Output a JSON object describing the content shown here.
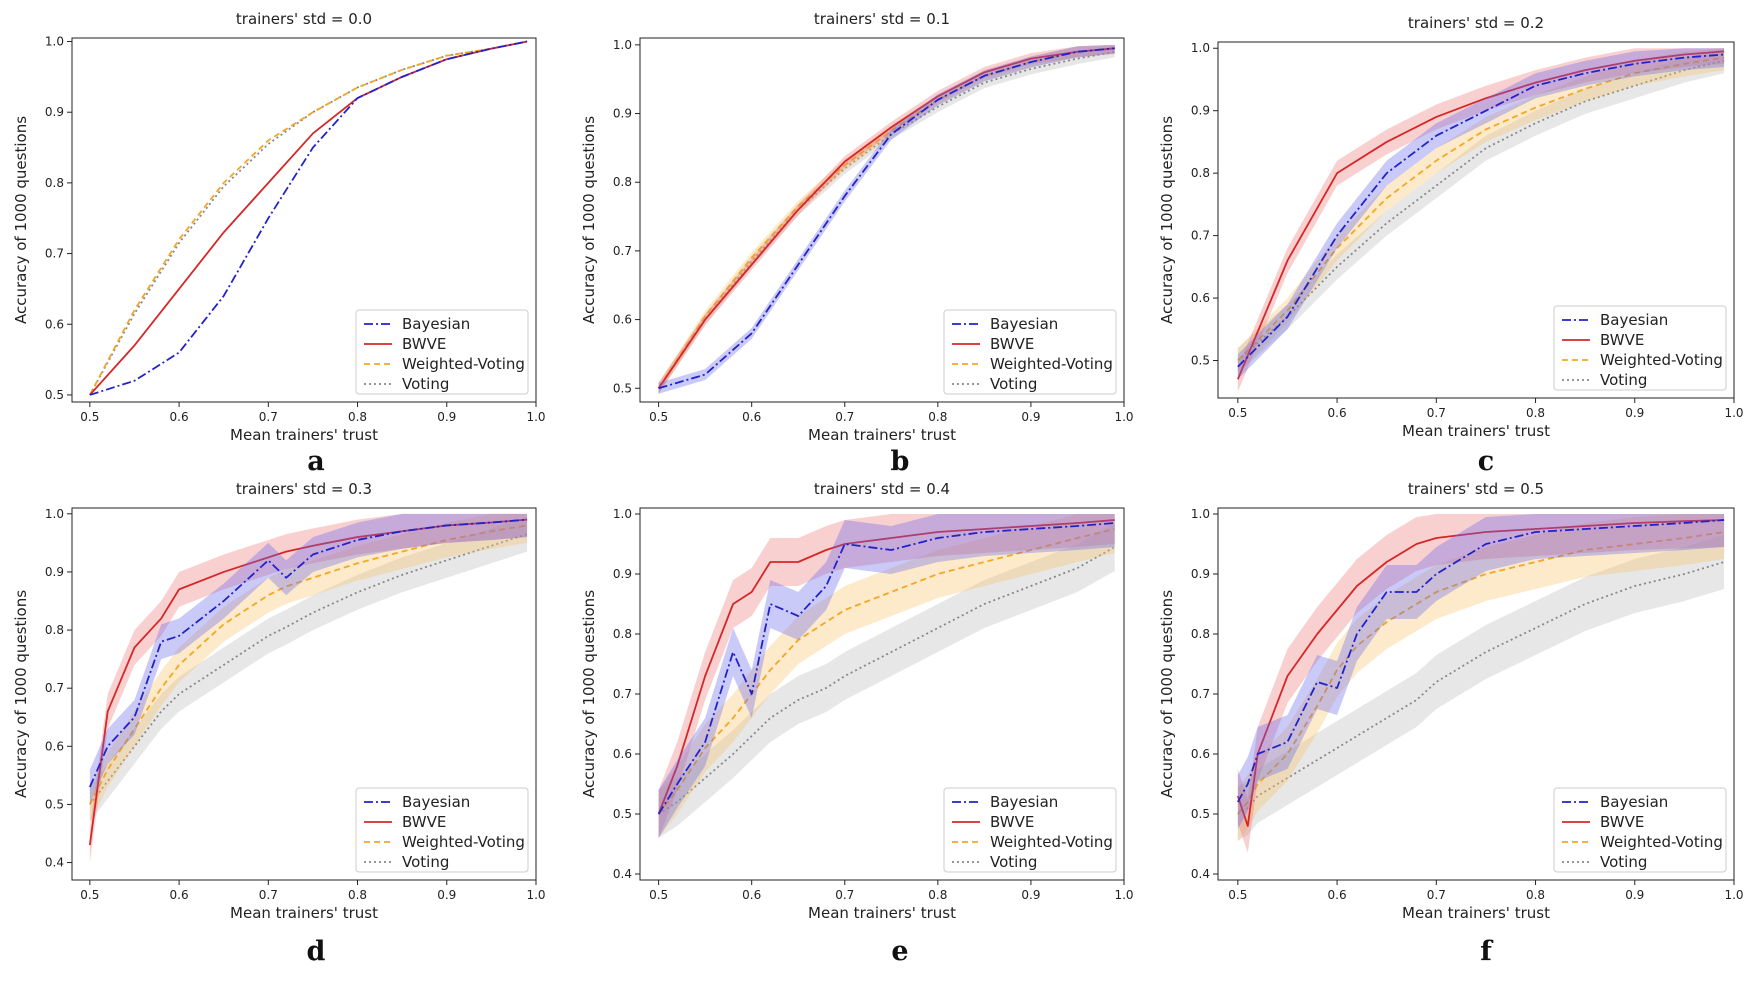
{
  "colors": {
    "Bayesian": "#2222cc",
    "BWVE": "#d62728",
    "Weighted-Voting": "#f5a623",
    "Voting": "#888888",
    "band_Bayesian": "#6666ee",
    "band_BWVE": "#ee7777",
    "band_Weighted-Voting": "#f7c46a",
    "band_Voting": "#bbbbbb"
  },
  "legend_labels": [
    "Bayesian",
    "BWVE",
    "Weighted-Voting",
    "Voting"
  ],
  "chart_data": [
    {
      "type": "line",
      "panel": "a",
      "title": "trainers' std = 0.0",
      "xlabel": "Mean trainers' trust",
      "ylabel": "Accuracy of 1000 questions",
      "xlim": [
        0.48,
        1.0
      ],
      "ylim": [
        0.49,
        1.005
      ],
      "xticks": [
        "0.5",
        "0.6",
        "0.7",
        "0.8",
        "0.9",
        "1.0"
      ],
      "yticks": [
        "0.5",
        "0.6",
        "0.7",
        "0.8",
        "0.9",
        "1.0"
      ],
      "legend": "lower-right",
      "band": 0.0,
      "x": [
        0.5,
        0.55,
        0.6,
        0.65,
        0.7,
        0.75,
        0.8,
        0.85,
        0.9,
        0.95,
        0.99
      ],
      "series": [
        {
          "name": "Bayesian",
          "values": [
            0.5,
            0.52,
            0.56,
            0.64,
            0.75,
            0.85,
            0.92,
            0.95,
            0.975,
            0.99,
            1.0
          ]
        },
        {
          "name": "BWVE",
          "values": [
            0.5,
            0.57,
            0.65,
            0.73,
            0.8,
            0.87,
            0.92,
            0.95,
            0.975,
            0.99,
            1.0
          ]
        },
        {
          "name": "Weighted-Voting",
          "values": [
            0.5,
            0.62,
            0.72,
            0.8,
            0.86,
            0.9,
            0.935,
            0.96,
            0.98,
            0.99,
            1.0
          ]
        },
        {
          "name": "Voting",
          "values": [
            0.5,
            0.615,
            0.715,
            0.795,
            0.855,
            0.9,
            0.935,
            0.96,
            0.98,
            0.99,
            1.0
          ]
        }
      ]
    },
    {
      "type": "line",
      "panel": "b",
      "title": "trainers' std = 0.1",
      "xlabel": "Mean trainers' trust",
      "ylabel": "Accuracy of 1000 questions",
      "xlim": [
        0.48,
        1.0
      ],
      "ylim": [
        0.48,
        1.01
      ],
      "xticks": [
        "0.5",
        "0.6",
        "0.7",
        "0.8",
        "0.9",
        "1.0"
      ],
      "yticks": [
        "0.5",
        "0.6",
        "0.7",
        "0.8",
        "0.9",
        "1.0"
      ],
      "legend": "lower-right",
      "band": 0.008,
      "x": [
        0.5,
        0.55,
        0.6,
        0.65,
        0.7,
        0.75,
        0.8,
        0.85,
        0.9,
        0.95,
        0.99
      ],
      "series": [
        {
          "name": "Bayesian",
          "values": [
            0.5,
            0.52,
            0.58,
            0.68,
            0.78,
            0.87,
            0.92,
            0.955,
            0.975,
            0.99,
            0.995
          ]
        },
        {
          "name": "BWVE",
          "values": [
            0.5,
            0.6,
            0.68,
            0.76,
            0.83,
            0.88,
            0.925,
            0.96,
            0.98,
            0.99,
            0.995
          ]
        },
        {
          "name": "Weighted-Voting",
          "values": [
            0.5,
            0.605,
            0.69,
            0.765,
            0.825,
            0.875,
            0.92,
            0.955,
            0.975,
            0.99,
            0.995
          ]
        },
        {
          "name": "Voting",
          "values": [
            0.5,
            0.6,
            0.685,
            0.76,
            0.82,
            0.87,
            0.91,
            0.945,
            0.965,
            0.98,
            0.99
          ]
        }
      ]
    },
    {
      "type": "line",
      "panel": "c",
      "title": "trainers' std = 0.2",
      "xlabel": "Mean trainers' trust",
      "ylabel": "Accuracy of 1000 questions",
      "xlim": [
        0.48,
        1.0
      ],
      "ylim": [
        0.44,
        1.01
      ],
      "xticks": [
        "0.5",
        "0.6",
        "0.7",
        "0.8",
        "0.9",
        "1.0"
      ],
      "yticks": [
        "0.5",
        "0.6",
        "0.7",
        "0.8",
        "0.9",
        "1.0"
      ],
      "legend": "lower-right",
      "band": 0.02,
      "x": [
        0.5,
        0.55,
        0.6,
        0.65,
        0.7,
        0.75,
        0.8,
        0.85,
        0.9,
        0.95,
        0.99
      ],
      "series": [
        {
          "name": "Bayesian",
          "values": [
            0.49,
            0.57,
            0.7,
            0.8,
            0.86,
            0.9,
            0.94,
            0.96,
            0.975,
            0.985,
            0.99
          ]
        },
        {
          "name": "BWVE",
          "values": [
            0.47,
            0.66,
            0.8,
            0.85,
            0.89,
            0.92,
            0.945,
            0.965,
            0.98,
            0.99,
            0.995
          ]
        },
        {
          "name": "Weighted-Voting",
          "values": [
            0.5,
            0.58,
            0.68,
            0.76,
            0.82,
            0.87,
            0.905,
            0.935,
            0.96,
            0.975,
            0.985
          ]
        },
        {
          "name": "Voting",
          "values": [
            0.5,
            0.57,
            0.65,
            0.72,
            0.78,
            0.84,
            0.88,
            0.915,
            0.94,
            0.965,
            0.98
          ]
        }
      ]
    },
    {
      "type": "line",
      "panel": "d",
      "title": "trainers' std = 0.3",
      "xlabel": "Mean trainers' trust",
      "ylabel": "Accuracy of 1000 questions",
      "xlim": [
        0.48,
        1.0
      ],
      "ylim": [
        0.37,
        1.01
      ],
      "xticks": [
        "0.5",
        "0.6",
        "0.7",
        "0.8",
        "0.9",
        "1.0"
      ],
      "yticks": [
        "0.4",
        "0.5",
        "0.6",
        "0.7",
        "0.8",
        "0.9",
        "1.0"
      ],
      "legend": "lower-right",
      "band": 0.03,
      "x": [
        0.5,
        0.52,
        0.55,
        0.58,
        0.6,
        0.65,
        0.7,
        0.72,
        0.75,
        0.8,
        0.85,
        0.9,
        0.95,
        0.99
      ],
      "series": [
        {
          "name": "Bayesian",
          "values": [
            0.53,
            0.6,
            0.65,
            0.78,
            0.79,
            0.85,
            0.92,
            0.89,
            0.93,
            0.955,
            0.97,
            0.98,
            0.985,
            0.99
          ]
        },
        {
          "name": "BWVE",
          "values": [
            0.43,
            0.66,
            0.77,
            0.82,
            0.87,
            0.9,
            0.925,
            0.935,
            0.945,
            0.96,
            0.97,
            0.98,
            0.985,
            0.99
          ]
        },
        {
          "name": "Weighted-Voting",
          "values": [
            0.5,
            0.56,
            0.63,
            0.7,
            0.74,
            0.81,
            0.86,
            0.875,
            0.89,
            0.915,
            0.935,
            0.955,
            0.97,
            0.98
          ]
        },
        {
          "name": "Voting",
          "values": [
            0.5,
            0.54,
            0.6,
            0.66,
            0.69,
            0.74,
            0.79,
            0.805,
            0.83,
            0.865,
            0.895,
            0.92,
            0.945,
            0.965
          ]
        }
      ]
    },
    {
      "type": "line",
      "panel": "e",
      "title": "trainers' std = 0.4",
      "xlabel": "Mean trainers' trust",
      "ylabel": "Accuracy of 1000 questions",
      "xlim": [
        0.48,
        1.0
      ],
      "ylim": [
        0.39,
        1.01
      ],
      "xticks": [
        "0.5",
        "0.6",
        "0.7",
        "0.8",
        "0.9",
        "1.0"
      ],
      "yticks": [
        "0.4",
        "0.5",
        "0.6",
        "0.7",
        "0.8",
        "0.9",
        "1.0"
      ],
      "legend": "lower-right",
      "band": 0.04,
      "x": [
        0.5,
        0.52,
        0.55,
        0.58,
        0.6,
        0.62,
        0.65,
        0.68,
        0.7,
        0.75,
        0.8,
        0.85,
        0.9,
        0.95,
        0.99
      ],
      "series": [
        {
          "name": "Bayesian",
          "values": [
            0.5,
            0.55,
            0.62,
            0.77,
            0.7,
            0.85,
            0.83,
            0.88,
            0.95,
            0.94,
            0.96,
            0.97,
            0.975,
            0.98,
            0.985
          ]
        },
        {
          "name": "BWVE",
          "values": [
            0.5,
            0.58,
            0.73,
            0.85,
            0.87,
            0.92,
            0.92,
            0.94,
            0.95,
            0.96,
            0.97,
            0.975,
            0.98,
            0.985,
            0.99
          ]
        },
        {
          "name": "Weighted-Voting",
          "values": [
            0.5,
            0.54,
            0.61,
            0.66,
            0.7,
            0.74,
            0.79,
            0.82,
            0.84,
            0.87,
            0.9,
            0.92,
            0.94,
            0.96,
            0.975
          ]
        },
        {
          "name": "Voting",
          "values": [
            0.5,
            0.52,
            0.56,
            0.6,
            0.63,
            0.66,
            0.69,
            0.71,
            0.73,
            0.77,
            0.81,
            0.85,
            0.88,
            0.91,
            0.945
          ]
        }
      ]
    },
    {
      "type": "line",
      "panel": "f",
      "title": "trainers' std = 0.5",
      "xlabel": "Mean trainers' trust",
      "ylabel": "Accuracy of 1000 questions",
      "xlim": [
        0.48,
        1.0
      ],
      "ylim": [
        0.39,
        1.01
      ],
      "xticks": [
        "0.5",
        "0.6",
        "0.7",
        "0.8",
        "0.9",
        "1.0"
      ],
      "yticks": [
        "0.4",
        "0.5",
        "0.6",
        "0.7",
        "0.8",
        "0.9",
        "1.0"
      ],
      "legend": "lower-right",
      "band": 0.045,
      "x": [
        0.5,
        0.51,
        0.52,
        0.55,
        0.58,
        0.6,
        0.62,
        0.65,
        0.68,
        0.7,
        0.75,
        0.8,
        0.85,
        0.9,
        0.95,
        0.99
      ],
      "series": [
        {
          "name": "Bayesian",
          "values": [
            0.52,
            0.55,
            0.6,
            0.62,
            0.72,
            0.71,
            0.8,
            0.87,
            0.87,
            0.9,
            0.95,
            0.97,
            0.975,
            0.98,
            0.985,
            0.99
          ]
        },
        {
          "name": "BWVE",
          "values": [
            0.53,
            0.48,
            0.6,
            0.73,
            0.8,
            0.84,
            0.88,
            0.92,
            0.95,
            0.96,
            0.97,
            0.975,
            0.98,
            0.985,
            0.988,
            0.99
          ]
        },
        {
          "name": "Weighted-Voting",
          "values": [
            0.5,
            0.52,
            0.55,
            0.6,
            0.68,
            0.74,
            0.78,
            0.82,
            0.85,
            0.87,
            0.9,
            0.92,
            0.94,
            0.95,
            0.96,
            0.97
          ]
        },
        {
          "name": "Voting",
          "values": [
            0.5,
            0.51,
            0.53,
            0.56,
            0.59,
            0.61,
            0.63,
            0.66,
            0.69,
            0.72,
            0.77,
            0.81,
            0.85,
            0.88,
            0.9,
            0.92
          ]
        }
      ]
    }
  ]
}
